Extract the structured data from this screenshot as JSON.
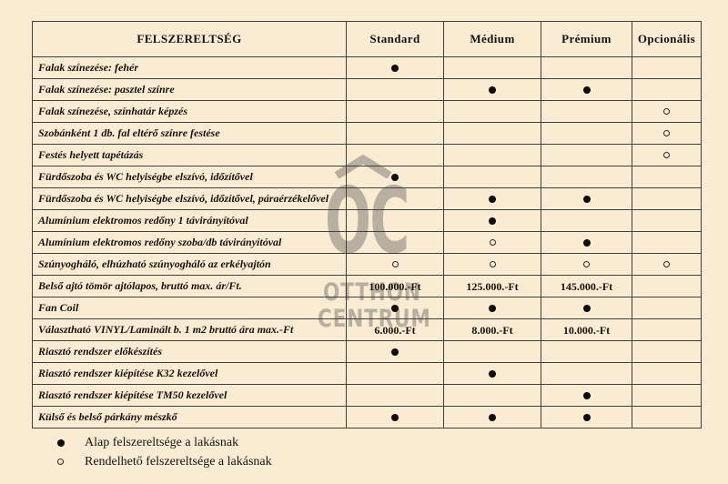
{
  "palette": {
    "background": "#faebd3",
    "grid_line": "#43403a",
    "text": "#16130e",
    "watermark_gray": "#aba396",
    "dot_black": "#0e0c09"
  },
  "watermark": {
    "monogram": "OC",
    "line1": "OTTHON",
    "line2": "CENTRUM"
  },
  "table": {
    "headers": [
      "FELSZERELTSÉG",
      "Standard",
      "Médium",
      "Prémium",
      "Opcionális"
    ],
    "symbol_tokens": {
      "filled": "alap",
      "hollow": "rendelhető"
    },
    "rows": [
      {
        "label": "Falak színezése: fehér",
        "cells": [
          "filled",
          "",
          "",
          ""
        ]
      },
      {
        "label": "Falak színezése: pasztel színre",
        "cells": [
          "",
          "filled",
          "filled",
          ""
        ]
      },
      {
        "label": "Falak színezése, színhatár képzés",
        "cells": [
          "",
          "",
          "",
          "hollow"
        ]
      },
      {
        "label": "Szobánként 1 db. fal eltérő színre festése",
        "cells": [
          "",
          "",
          "",
          "hollow"
        ]
      },
      {
        "label": "Festés helyett tapétázás",
        "cells": [
          "",
          "",
          "",
          "hollow"
        ]
      },
      {
        "label": "Fürdőszoba és WC helyiségbe elszívó, időzítővel",
        "cells": [
          "filled",
          "",
          "",
          ""
        ]
      },
      {
        "label": "Fürdőszoba és WC helyiségbe elszívó, időzítővel, páraérzékelővel",
        "cells": [
          "",
          "filled",
          "filled",
          ""
        ]
      },
      {
        "label": "Alumínium elektromos redőny 1 távirányítóval",
        "cells": [
          "",
          "filled",
          "",
          ""
        ]
      },
      {
        "label": "Alumínium elektromos redőny szoba/db távirányítóval",
        "cells": [
          "",
          "hollow",
          "filled",
          ""
        ]
      },
      {
        "label": "Szúnyogháló, elhúzható szúnyogháló az erkélyajtón",
        "cells": [
          "hollow",
          "hollow",
          "hollow",
          "hollow"
        ]
      },
      {
        "label": "Belső ajtó tömör ajtólapos, bruttó max. ár/Ft.",
        "cells": [
          "100.000.-Ft",
          "125.000.-Ft",
          "145.000.-Ft",
          ""
        ]
      },
      {
        "label": "Fan Coil",
        "cells": [
          "filled",
          "filled",
          "filled",
          ""
        ]
      },
      {
        "label": "Választható VINYL/Laminált b. 1 m2 bruttó ára max.-Ft",
        "cells": [
          "6.000.-Ft",
          "8.000.-Ft",
          "10.000.-Ft",
          ""
        ]
      },
      {
        "label": "Riasztó rendszer előkészítés",
        "cells": [
          "filled",
          "",
          "",
          ""
        ]
      },
      {
        "label": "Riasztó rendszer kiépítése K32 kezelővel",
        "cells": [
          "",
          "filled",
          "",
          ""
        ]
      },
      {
        "label": "Riasztó rendszer kiépítése TM50 kezelővel",
        "cells": [
          "",
          "",
          "filled",
          ""
        ]
      },
      {
        "label": "Külső és belső párkány mészkő",
        "cells": [
          "filled",
          "filled",
          "filled",
          ""
        ]
      }
    ]
  },
  "legend": [
    {
      "symbol": "filled",
      "label": "Alap felszereltsége a lakásnak"
    },
    {
      "symbol": "hollow",
      "label": "Rendelhető felszereltsége a lakásnak"
    }
  ]
}
